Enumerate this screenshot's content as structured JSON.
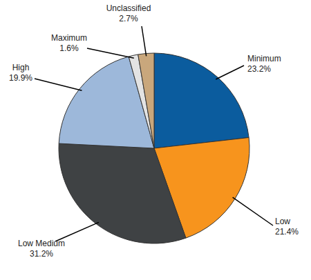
{
  "chart_data": {
    "type": "pie",
    "categories": [
      "Minimum",
      "Low",
      "Low Medium",
      "High",
      "Maximum",
      "Unclassified"
    ],
    "values": [
      23.2,
      21.4,
      31.2,
      19.9,
      1.6,
      2.7
    ],
    "value_labels": [
      "23.2%",
      "21.4%",
      "31.2%",
      "19.9%",
      "1.6%",
      "2.7%"
    ],
    "colors": [
      "#0b5c9e",
      "#f7941d",
      "#3f4244",
      "#9db8da",
      "#e3e3e3",
      "#c9a77c"
    ],
    "data_labels": true
  }
}
